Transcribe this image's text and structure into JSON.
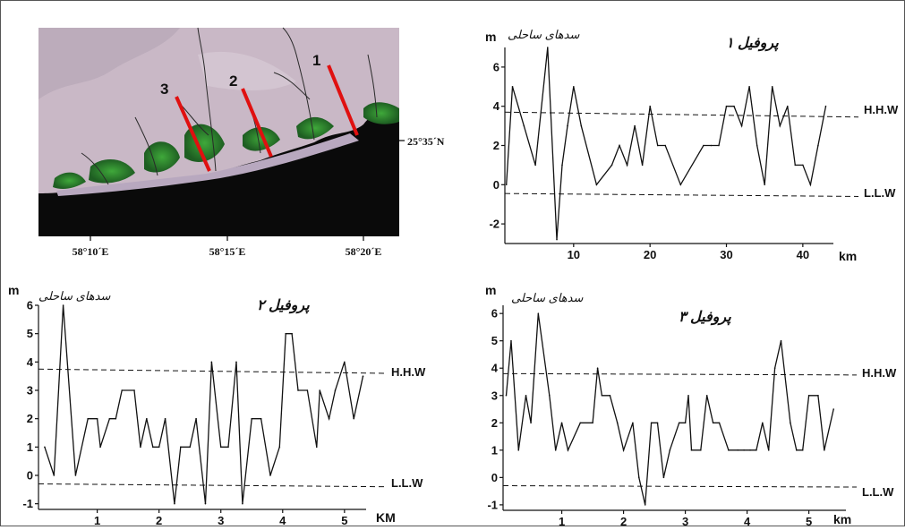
{
  "map": {
    "lon_labels": [
      "58°10´E",
      "58°15´E",
      "58°20´E"
    ],
    "lat_label": "25°35´N",
    "profile_numbers": [
      "1",
      "2",
      "3"
    ],
    "colors": {
      "sea": "#0a0a0a",
      "land": "#c8b6c4",
      "vegetation": "#2e8a2e",
      "profile_line": "#e01010"
    }
  },
  "chart_data": [
    {
      "type": "line",
      "title": "پروفیل ۱",
      "subtitle": "سدهای ساحلی",
      "ylabel": "m",
      "xlabel": "km",
      "xlim": [
        1,
        44
      ],
      "ylim": [
        -3,
        7
      ],
      "x_ticks": [
        "10",
        "20",
        "30",
        "40"
      ],
      "x_tick_values": [
        10,
        20,
        30,
        40
      ],
      "y_ticks": [
        "6",
        "4",
        "2",
        "0",
        "-2"
      ],
      "y_tick_values": [
        6,
        4,
        2,
        0,
        -2
      ],
      "reference_lines": [
        {
          "label": "H.H.W",
          "start": 3.7,
          "end": 3.45
        },
        {
          "label": "L.L.W",
          "start": -0.45,
          "end": -0.6
        }
      ],
      "x": [
        1.2,
        2,
        3.5,
        5,
        6.6,
        7.8,
        8.5,
        9.2,
        10,
        11,
        13,
        15,
        16,
        17,
        18,
        19,
        20,
        21,
        22,
        24,
        27,
        28,
        29,
        30,
        31,
        32,
        33,
        34,
        35,
        36,
        37,
        38,
        39,
        40,
        41,
        42,
        43
      ],
      "y": [
        0,
        5,
        3,
        1,
        7,
        -2.8,
        1,
        3,
        5,
        3,
        0,
        1,
        2,
        1,
        3,
        1,
        4,
        2,
        2,
        0,
        2,
        2,
        2,
        4,
        4,
        3,
        5,
        2,
        0,
        5,
        3,
        4,
        1,
        1,
        0,
        2,
        4
      ]
    },
    {
      "type": "line",
      "title": "پروفیل ۲",
      "subtitle": "سدهای ساحلی",
      "ylabel": "m",
      "xlabel": "KM",
      "xlim": [
        0.05,
        5.35
      ],
      "ylim": [
        -1.2,
        6
      ],
      "x_ticks": [
        "1",
        "2",
        "3",
        "4",
        "5"
      ],
      "x_tick_values": [
        1,
        2,
        3,
        4,
        5
      ],
      "y_ticks": [
        "6",
        "5",
        "4",
        "3",
        "2",
        "1",
        "0",
        "-1"
      ],
      "y_tick_values": [
        6,
        5,
        4,
        3,
        2,
        1,
        0,
        -1
      ],
      "reference_lines": [
        {
          "label": "H.H.W",
          "start": 3.75,
          "end": 3.6
        },
        {
          "label": "L.L.W",
          "start": -0.3,
          "end": -0.4
        }
      ],
      "x": [
        0.15,
        0.3,
        0.45,
        0.65,
        0.85,
        1.0,
        1.05,
        1.2,
        1.3,
        1.4,
        1.6,
        1.7,
        1.8,
        1.9,
        2.0,
        2.1,
        2.25,
        2.35,
        2.5,
        2.6,
        2.75,
        2.85,
        3.0,
        3.12,
        3.25,
        3.35,
        3.5,
        3.65,
        3.8,
        3.95,
        4.05,
        4.15,
        4.25,
        4.4,
        4.55,
        4.6,
        4.75,
        4.85,
        5.0,
        5.15,
        5.3
      ],
      "y": [
        1,
        0,
        6,
        0,
        2,
        2,
        1,
        2,
        2,
        3,
        3,
        1,
        2,
        1,
        1,
        2,
        -1,
        1,
        1,
        2,
        -1,
        4,
        1,
        1,
        4,
        -1,
        2,
        2,
        0,
        1,
        5,
        5,
        3,
        3,
        1,
        3,
        2,
        3,
        4,
        2,
        3.5
      ]
    },
    {
      "type": "line",
      "title": "پروفیل ۳",
      "subtitle": "سدهای ساحلی",
      "ylabel": "m",
      "xlabel": "km",
      "xlim": [
        0.05,
        5.6
      ],
      "ylim": [
        -1.2,
        6.3
      ],
      "x_ticks": [
        "1",
        "2",
        "3",
        "4",
        "5"
      ],
      "x_tick_values": [
        1,
        2,
        3,
        4,
        5
      ],
      "y_ticks": [
        "6",
        "5",
        "4",
        "3",
        "2",
        "1",
        "0",
        "-1"
      ],
      "y_tick_values": [
        6,
        5,
        4,
        3,
        2,
        1,
        0,
        -1
      ],
      "reference_lines": [
        {
          "label": "H.H.W",
          "start": 3.8,
          "end": 3.75
        },
        {
          "label": "L.L.W",
          "start": -0.3,
          "end": -0.35
        }
      ],
      "x": [
        0.1,
        0.18,
        0.3,
        0.42,
        0.5,
        0.62,
        0.8,
        0.9,
        1.0,
        1.1,
        1.3,
        1.5,
        1.58,
        1.65,
        1.78,
        1.9,
        2.0,
        2.15,
        2.25,
        2.35,
        2.45,
        2.55,
        2.65,
        2.75,
        2.9,
        3.0,
        3.05,
        3.1,
        3.25,
        3.35,
        3.45,
        3.55,
        3.7,
        3.85,
        3.95,
        4.05,
        4.15,
        4.25,
        4.35,
        4.45,
        4.55,
        4.7,
        4.8,
        4.9,
        5.0,
        5.15,
        5.25,
        5.4
      ],
      "y": [
        3,
        5,
        1,
        3,
        2,
        6,
        3,
        1,
        2,
        1,
        2,
        2,
        4,
        3,
        3,
        2,
        1,
        2,
        0,
        -1,
        2,
        2,
        0,
        1,
        2,
        2,
        3,
        1,
        1,
        3,
        2,
        2,
        1,
        1,
        1,
        1,
        1,
        2,
        1,
        4,
        5,
        2,
        1,
        1,
        3,
        3,
        1,
        2.5
      ]
    }
  ]
}
